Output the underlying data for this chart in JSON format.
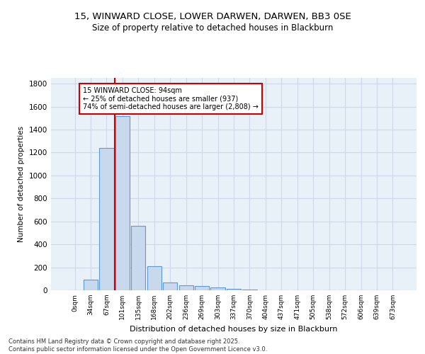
{
  "title_line1": "15, WINWARD CLOSE, LOWER DARWEN, DARWEN, BB3 0SE",
  "title_line2": "Size of property relative to detached houses in Blackburn",
  "xlabel": "Distribution of detached houses by size in Blackburn",
  "ylabel": "Number of detached properties",
  "bar_labels": [
    "0sqm",
    "34sqm",
    "67sqm",
    "101sqm",
    "135sqm",
    "168sqm",
    "202sqm",
    "236sqm",
    "269sqm",
    "303sqm",
    "337sqm",
    "370sqm",
    "404sqm",
    "437sqm",
    "471sqm",
    "505sqm",
    "538sqm",
    "572sqm",
    "606sqm",
    "639sqm",
    "673sqm"
  ],
  "bar_values": [
    0,
    95,
    1240,
    1520,
    560,
    210,
    65,
    45,
    35,
    25,
    10,
    5,
    0,
    0,
    0,
    0,
    0,
    0,
    0,
    0,
    0
  ],
  "bar_color": "#c8d8ed",
  "bar_edge_color": "#5b9bd5",
  "grid_color": "#d0d8e8",
  "background_color": "#e8f0f8",
  "vline_x": 2.5,
  "vline_color": "#cc0000",
  "annotation_text": "15 WINWARD CLOSE: 94sqm\n← 25% of detached houses are smaller (937)\n74% of semi-detached houses are larger (2,808) →",
  "annotation_box_color": "#ffffff",
  "annotation_box_edge": "#cc0000",
  "ylim": [
    0,
    1850
  ],
  "yticks": [
    0,
    200,
    400,
    600,
    800,
    1000,
    1200,
    1400,
    1600,
    1800
  ],
  "footer_line1": "Contains HM Land Registry data © Crown copyright and database right 2025.",
  "footer_line2": "Contains public sector information licensed under the Open Government Licence v3.0."
}
